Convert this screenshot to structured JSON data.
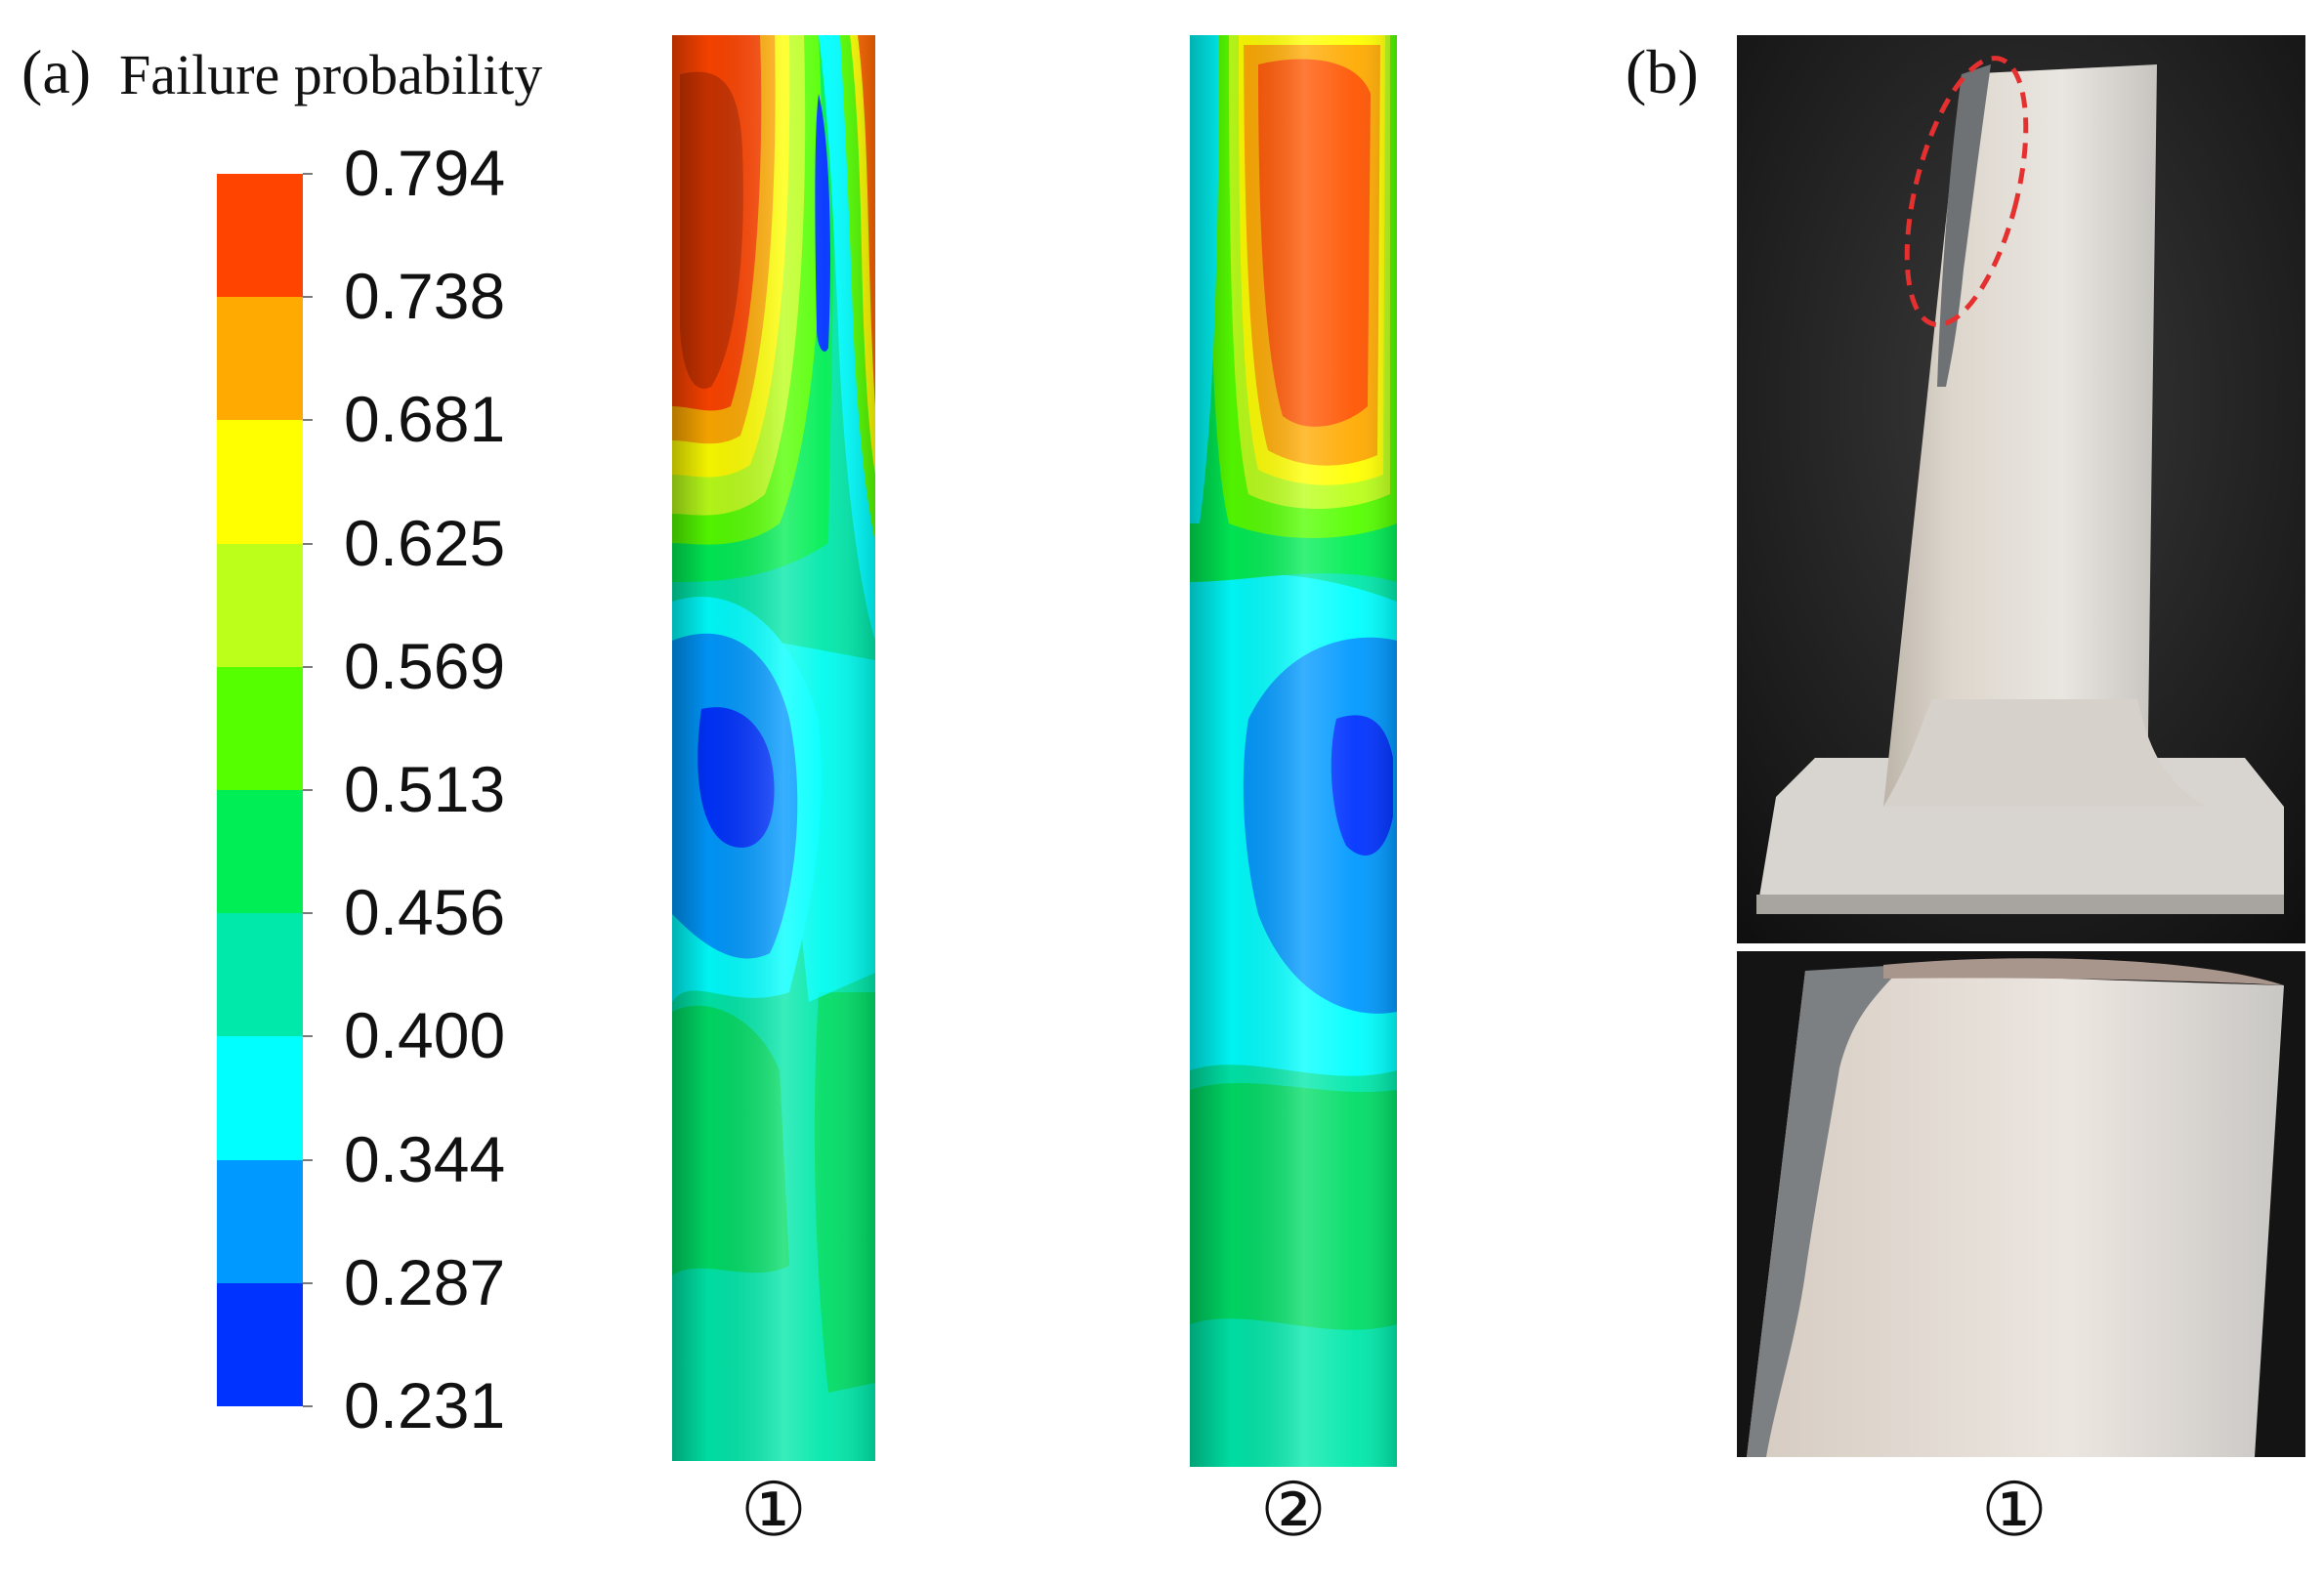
{
  "panel_a": {
    "letter": "(a)",
    "legend_title": "Failure probability",
    "colorbar": {
      "ticks": [
        "0.794",
        "0.738",
        "0.681",
        "0.625",
        "0.569",
        "0.513",
        "0.456",
        "0.400",
        "0.344",
        "0.287",
        "0.231"
      ],
      "band_colors_top_to_bottom": [
        "#ff4400",
        "#ffaa00",
        "#ffff00",
        "#bbff1a",
        "#55ff00",
        "#00ee55",
        "#00e8aa",
        "#00ffff",
        "#0099ff",
        "#0033ff"
      ]
    },
    "columns": [
      {
        "label": "①"
      },
      {
        "label": "②"
      }
    ]
  },
  "panel_b": {
    "letter": "(b)",
    "label": "①",
    "highlight_color": "#e53030"
  }
}
